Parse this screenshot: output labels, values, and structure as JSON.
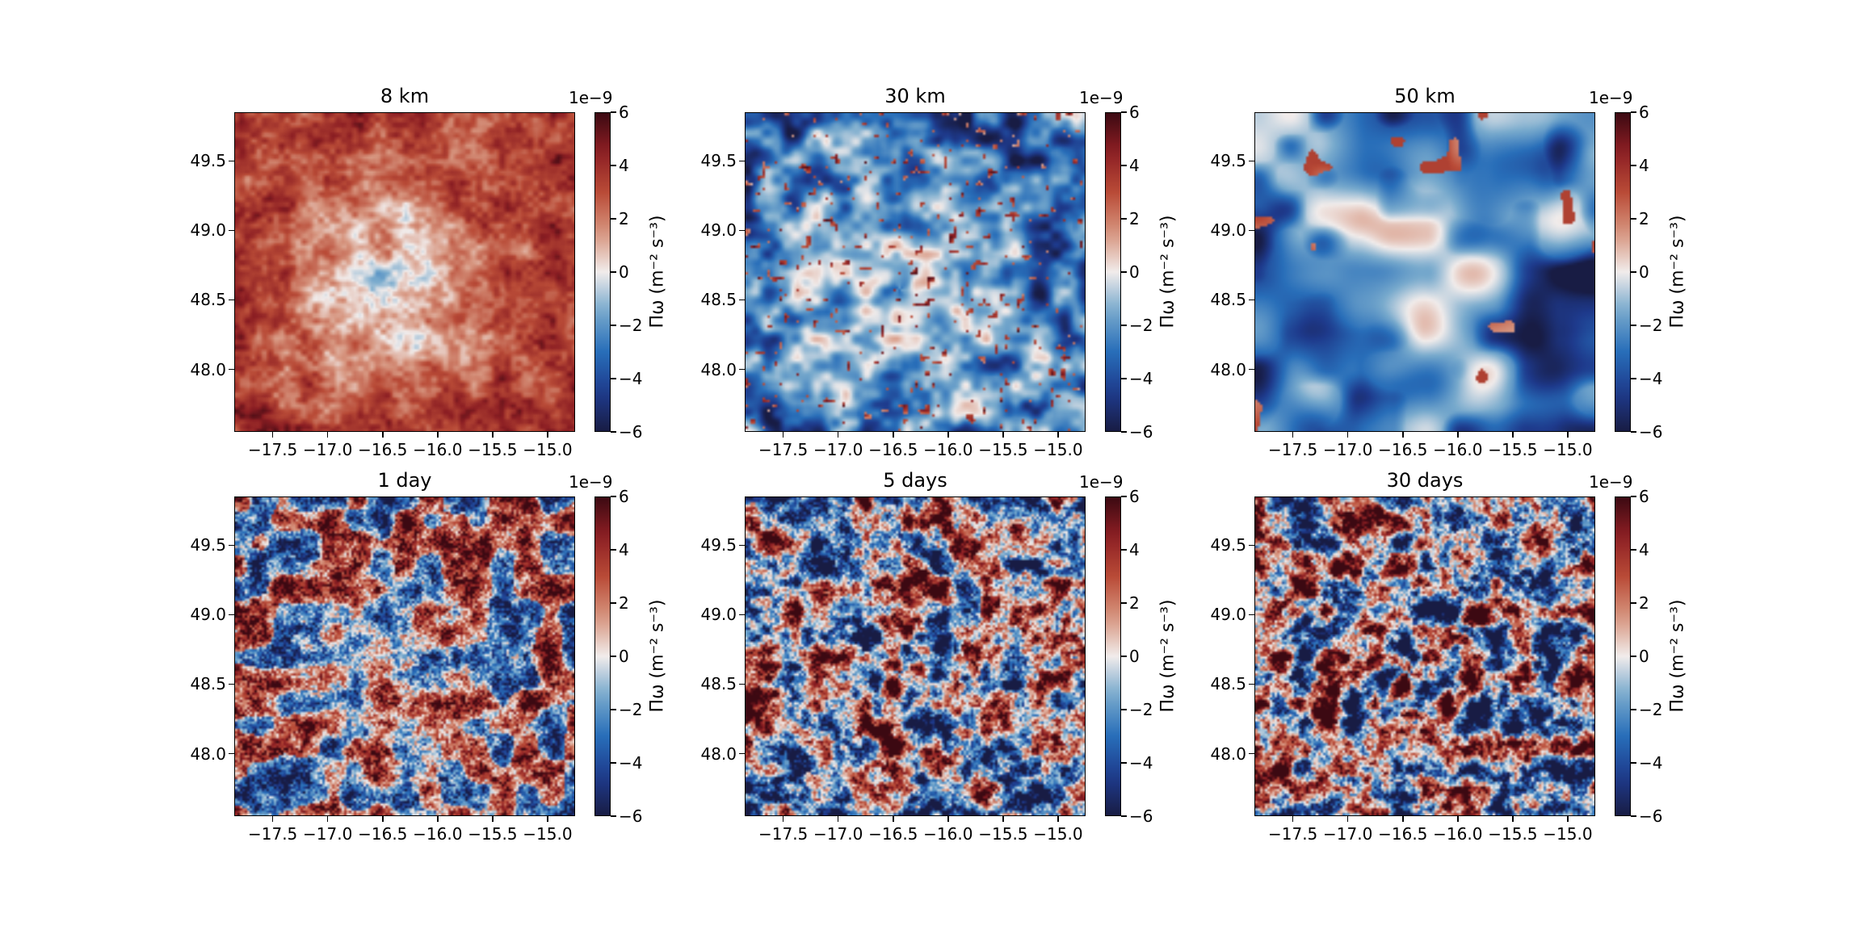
{
  "chart_data": [
    {
      "type": "heatmap",
      "title": "8 km",
      "field_style": "positive-smooth",
      "x_ticks": [
        "−17.5",
        "−17.0",
        "−16.5",
        "−16.0",
        "−15.5",
        "−15.0"
      ],
      "x_tick_values": [
        -17.5,
        -17.0,
        -16.5,
        -16.0,
        -15.5,
        -15.0
      ],
      "xlim": [
        -17.85,
        -14.75
      ],
      "y_ticks": [
        "49.5",
        "49.0",
        "48.5",
        "48.0"
      ],
      "y_tick_values": [
        49.5,
        49.0,
        48.5,
        48.0
      ],
      "ylim": [
        47.55,
        49.85
      ],
      "colorbar": {
        "label": "Πω (m⁻² s⁻³)",
        "exponent": "1e−9",
        "ticks": [
          "6",
          "4",
          "2",
          "0",
          "−2",
          "−4",
          "−6"
        ],
        "range": [
          -6,
          6
        ],
        "colormap": "balance"
      }
    },
    {
      "type": "heatmap",
      "title": "30 km",
      "field_style": "negative-smooth",
      "x_ticks": [
        "−17.5",
        "−17.0",
        "−16.5",
        "−16.0",
        "−15.5",
        "−15.0"
      ],
      "x_tick_values": [
        -17.5,
        -17.0,
        -16.5,
        -16.0,
        -15.5,
        -15.0
      ],
      "xlim": [
        -17.85,
        -14.75
      ],
      "y_ticks": [
        "49.5",
        "49.0",
        "48.5",
        "48.0"
      ],
      "y_tick_values": [
        49.5,
        49.0,
        48.5,
        48.0
      ],
      "ylim": [
        47.55,
        49.85
      ],
      "colorbar": {
        "label": "Πω (m⁻² s⁻³)",
        "exponent": "1e−9",
        "ticks": [
          "6",
          "4",
          "2",
          "0",
          "−2",
          "−4",
          "−6"
        ],
        "range": [
          -6,
          6
        ],
        "colormap": "balance"
      }
    },
    {
      "type": "heatmap",
      "title": "50 km",
      "field_style": "negative-blurry",
      "x_ticks": [
        "−17.5",
        "−17.0",
        "−16.5",
        "−16.0",
        "−15.5",
        "−15.0"
      ],
      "x_tick_values": [
        -17.5,
        -17.0,
        -16.5,
        -16.0,
        -15.5,
        -15.0
      ],
      "xlim": [
        -17.85,
        -14.75
      ],
      "y_ticks": [
        "49.5",
        "49.0",
        "48.5",
        "48.0"
      ],
      "y_tick_values": [
        49.5,
        49.0,
        48.5,
        48.0
      ],
      "ylim": [
        47.55,
        49.85
      ],
      "colorbar": {
        "label": "Πω (m⁻² s⁻³)",
        "exponent": "1e−9",
        "ticks": [
          "6",
          "4",
          "2",
          "0",
          "−2",
          "−4",
          "−6"
        ],
        "range": [
          -6,
          6
        ],
        "colormap": "balance"
      }
    },
    {
      "type": "heatmap",
      "title": "1 day",
      "field_style": "mixed-moderate",
      "x_ticks": [
        "−17.5",
        "−17.0",
        "−16.5",
        "−16.0",
        "−15.5",
        "−15.0"
      ],
      "x_tick_values": [
        -17.5,
        -17.0,
        -16.5,
        -16.0,
        -15.5,
        -15.0
      ],
      "xlim": [
        -17.85,
        -14.75
      ],
      "y_ticks": [
        "49.5",
        "49.0",
        "48.5",
        "48.0"
      ],
      "y_tick_values": [
        49.5,
        49.0,
        48.5,
        48.0
      ],
      "ylim": [
        47.55,
        49.85
      ],
      "colorbar": {
        "label": "Πω (m⁻² s⁻³)",
        "exponent": "1e−9",
        "ticks": [
          "6",
          "4",
          "2",
          "0",
          "−2",
          "−4",
          "−6"
        ],
        "range": [
          -6,
          6
        ],
        "colormap": "balance"
      }
    },
    {
      "type": "heatmap",
      "title": "5 days",
      "field_style": "mixed-saturated",
      "x_ticks": [
        "−17.5",
        "−17.0",
        "−16.5",
        "−16.0",
        "−15.5",
        "−15.0"
      ],
      "x_tick_values": [
        -17.5,
        -17.0,
        -16.5,
        -16.0,
        -15.5,
        -15.0
      ],
      "xlim": [
        -17.85,
        -14.75
      ],
      "y_ticks": [
        "49.5",
        "49.0",
        "48.5",
        "48.0"
      ],
      "y_tick_values": [
        49.5,
        49.0,
        48.5,
        48.0
      ],
      "ylim": [
        47.55,
        49.85
      ],
      "colorbar": {
        "label": "Πω (m⁻² s⁻³)",
        "exponent": "1e−9",
        "ticks": [
          "6",
          "4",
          "2",
          "0",
          "−2",
          "−4",
          "−6"
        ],
        "range": [
          -6,
          6
        ],
        "colormap": "balance"
      }
    },
    {
      "type": "heatmap",
      "title": "30 days",
      "field_style": "mixed-saturated-strong",
      "x_ticks": [
        "−17.5",
        "−17.0",
        "−16.5",
        "−16.0",
        "−15.5",
        "−15.0"
      ],
      "x_tick_values": [
        -17.5,
        -17.0,
        -16.5,
        -16.0,
        -15.5,
        -15.0
      ],
      "xlim": [
        -17.85,
        -14.75
      ],
      "y_ticks": [
        "49.5",
        "49.0",
        "48.5",
        "48.0"
      ],
      "y_tick_values": [
        49.5,
        49.0,
        48.5,
        48.0
      ],
      "ylim": [
        47.55,
        49.85
      ],
      "colorbar": {
        "label": "Πω (m⁻² s⁻³)",
        "exponent": "1e−9",
        "ticks": [
          "6",
          "4",
          "2",
          "0",
          "−2",
          "−4",
          "−6"
        ],
        "range": [
          -6,
          6
        ],
        "colormap": "balance"
      }
    }
  ]
}
